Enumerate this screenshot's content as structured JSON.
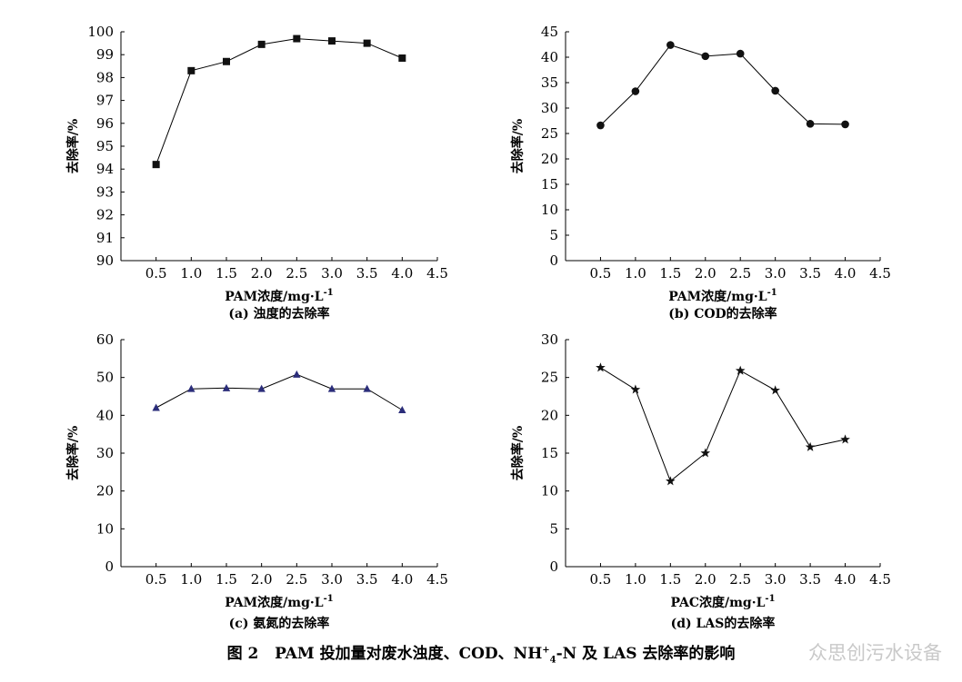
{
  "figure_caption": {
    "prefix": "图 2",
    "main": "PAM 投加量对废水浊度、COD、NH",
    "sup": "+",
    "sub": "4",
    "suffix": "-N 及 LAS 去除率的影响"
  },
  "watermark": "众思创污水设备",
  "chart_data": [
    {
      "type": "line",
      "marker": "square",
      "color": "#111111",
      "caption": "(a) 浊度的去除率",
      "xlabel": "PAM浓度/mg·L",
      "xlabel_sup": "-1",
      "ylabel": "去除率/%",
      "xlim": [
        0,
        4.5
      ],
      "ylim": [
        90,
        100
      ],
      "xticks": [
        "0.5",
        "1.0",
        "1.5",
        "2.0",
        "2.5",
        "3.0",
        "3.5",
        "4.0",
        "4.5"
      ],
      "yticks": [
        "90",
        "91",
        "92",
        "93",
        "94",
        "95",
        "96",
        "97",
        "98",
        "99",
        "100"
      ],
      "x": [
        0.5,
        1.0,
        1.5,
        2.0,
        2.5,
        3.0,
        3.5,
        4.0
      ],
      "y": [
        94.2,
        98.3,
        98.7,
        99.45,
        99.7,
        99.6,
        99.5,
        98.85
      ]
    },
    {
      "type": "line",
      "marker": "circle",
      "color": "#111111",
      "caption": "(b) COD的去除率",
      "xlabel": "PAM浓度/mg·L",
      "xlabel_sup": "-1",
      "ylabel": "去除率/%",
      "xlim": [
        0,
        4.5
      ],
      "ylim": [
        0,
        45
      ],
      "xticks": [
        "0.5",
        "1.0",
        "1.5",
        "2.0",
        "2.5",
        "3.0",
        "3.5",
        "4.0",
        "4.5"
      ],
      "yticks": [
        "0",
        "5",
        "10",
        "15",
        "20",
        "25",
        "30",
        "35",
        "40",
        "45"
      ],
      "x": [
        0.5,
        1.0,
        1.5,
        2.0,
        2.5,
        3.0,
        3.5,
        4.0
      ],
      "y": [
        26.6,
        33.3,
        42.4,
        40.2,
        40.7,
        33.4,
        26.9,
        26.8
      ]
    },
    {
      "type": "line",
      "marker": "triangle",
      "color": "#2b2d7a",
      "caption": "(c) 氨氮的去除率",
      "xlabel": "PAM浓度/mg·L",
      "xlabel_sup": "-1",
      "ylabel": "去除率/%",
      "xlim": [
        0,
        4.5
      ],
      "ylim": [
        0,
        60
      ],
      "xticks": [
        "0.5",
        "1.0",
        "1.5",
        "2.0",
        "2.5",
        "3.0",
        "3.5",
        "4.0",
        "4.5"
      ],
      "yticks": [
        "0",
        "10",
        "20",
        "30",
        "40",
        "50",
        "60"
      ],
      "x": [
        0.5,
        1.0,
        1.5,
        2.0,
        2.5,
        3.0,
        3.5,
        4.0
      ],
      "y": [
        42,
        47,
        47.2,
        47,
        50.8,
        47,
        47,
        41.4
      ]
    },
    {
      "type": "line",
      "marker": "star",
      "color": "#111111",
      "caption": "(d) LAS的去除率",
      "xlabel": "PAC浓度/mg·L",
      "xlabel_sup": "-1",
      "ylabel": "去除率/%",
      "xlim": [
        0,
        4.5
      ],
      "ylim": [
        0,
        30
      ],
      "xticks": [
        "0.5",
        "1.0",
        "1.5",
        "2.0",
        "2.5",
        "3.0",
        "3.5",
        "4.0",
        "4.5"
      ],
      "yticks": [
        "0",
        "5",
        "10",
        "15",
        "20",
        "25",
        "30"
      ],
      "x": [
        0.5,
        1.0,
        1.5,
        2.0,
        2.5,
        3.0,
        3.5,
        4.0
      ],
      "y": [
        26.3,
        23.4,
        11.3,
        15,
        25.9,
        23.3,
        15.8,
        16.8
      ]
    }
  ]
}
